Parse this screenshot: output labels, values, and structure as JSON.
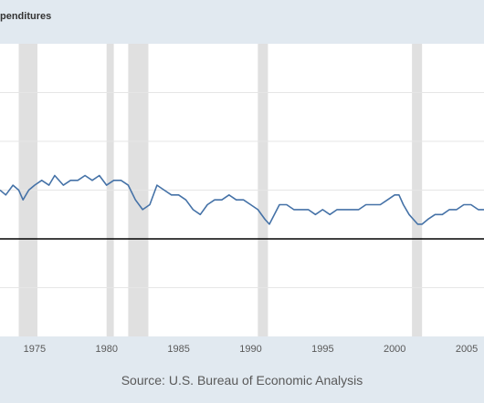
{
  "header": {
    "title": "penditures"
  },
  "footer": {
    "source": "Source: U.S. Bureau of Economic Analysis"
  },
  "colors": {
    "background": "#e1e9f0",
    "plot_background": "#ffffff",
    "series_line": "#4572a7",
    "recession_band": "#e0e0e0",
    "reference_line": "#000000",
    "grid": "#e6e6e6"
  },
  "chart_data": {
    "type": "line",
    "title": "penditures",
    "xlabel": "",
    "ylabel": "",
    "xlim": [
      1972.6,
      2006.2
    ],
    "ylim": [
      0,
      6
    ],
    "grid": true,
    "legend": "none",
    "x_ticks": [
      "1975",
      "1980",
      "1985",
      "1990",
      "1995",
      "2000",
      "2005"
    ],
    "reference_line_y": 2,
    "recessions": [
      {
        "start": 1973.9,
        "end": 1975.2
      },
      {
        "start": 1980.0,
        "end": 1980.5
      },
      {
        "start": 1981.5,
        "end": 1982.9
      },
      {
        "start": 1990.5,
        "end": 1991.2
      },
      {
        "start": 2001.2,
        "end": 2001.9
      }
    ],
    "series": [
      {
        "x": [
          1972.6,
          1973.0,
          1973.5,
          1973.9,
          1974.2,
          1974.6,
          1975.0,
          1975.5,
          1976.0,
          1976.4,
          1977.0,
          1977.5,
          1978.0,
          1978.5,
          1979.0,
          1979.5,
          1980.0,
          1980.5,
          1981.0,
          1981.5,
          1982.0,
          1982.5,
          1983.0,
          1983.5,
          1984.0,
          1984.5,
          1985.0,
          1985.5,
          1986.0,
          1986.5,
          1987.0,
          1987.5,
          1988.0,
          1988.5,
          1989.0,
          1989.5,
          1990.0,
          1990.5,
          1991.0,
          1991.3,
          1992.0,
          1992.5,
          1993.0,
          1993.5,
          1994.0,
          1994.5,
          1995.0,
          1995.5,
          1996.0,
          1996.5,
          1997.0,
          1997.5,
          1998.0,
          1998.5,
          1999.0,
          1999.5,
          2000.0,
          2000.3,
          2000.6,
          2001.0,
          2001.3,
          2001.6,
          2001.9,
          2002.3,
          2002.8,
          2003.3,
          2003.8,
          2004.3,
          2004.8,
          2005.3,
          2005.8,
          2006.2
        ],
        "values": [
          3.0,
          2.9,
          3.1,
          3.0,
          2.8,
          3.0,
          3.1,
          3.2,
          3.1,
          3.3,
          3.1,
          3.2,
          3.2,
          3.3,
          3.2,
          3.3,
          3.1,
          3.2,
          3.2,
          3.1,
          2.8,
          2.6,
          2.7,
          3.1,
          3.0,
          2.9,
          2.9,
          2.8,
          2.6,
          2.5,
          2.7,
          2.8,
          2.8,
          2.9,
          2.8,
          2.8,
          2.7,
          2.6,
          2.4,
          2.3,
          2.7,
          2.7,
          2.6,
          2.6,
          2.6,
          2.5,
          2.6,
          2.5,
          2.6,
          2.6,
          2.6,
          2.6,
          2.7,
          2.7,
          2.7,
          2.8,
          2.9,
          2.9,
          2.7,
          2.5,
          2.4,
          2.3,
          2.3,
          2.4,
          2.5,
          2.5,
          2.6,
          2.6,
          2.7,
          2.7,
          2.6,
          2.6
        ]
      }
    ]
  }
}
